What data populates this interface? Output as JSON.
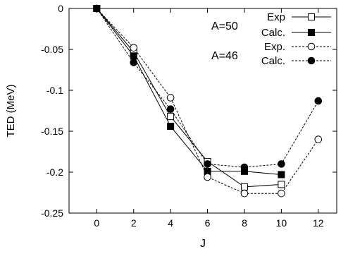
{
  "chart_data": {
    "type": "line",
    "xlabel": "J",
    "ylabel": "TED (MeV)",
    "xlim": [
      -1.5,
      13.0
    ],
    "ylim": [
      -0.25,
      0.0
    ],
    "x_ticks": [
      "0",
      "2",
      "4",
      "6",
      "8",
      "10",
      "12"
    ],
    "y_ticks": [
      "0",
      "-0.05",
      "-0.1",
      "-0.15",
      "-0.2",
      "-0.25"
    ],
    "x_tick_values": [
      0,
      2,
      4,
      6,
      8,
      10,
      12
    ],
    "y_tick_values": [
      0,
      -0.05,
      -0.1,
      -0.15,
      -0.2,
      -0.25
    ],
    "grid": false,
    "legend_position": "top-right",
    "groups": [
      {
        "label": "A=50",
        "series": [
          0,
          1
        ]
      },
      {
        "label": "A=46",
        "series": [
          2,
          3
        ]
      }
    ],
    "series": [
      {
        "name": "Exp",
        "x": [
          0,
          2,
          4,
          6,
          8,
          10
        ],
        "y": [
          0.0,
          -0.053,
          -0.132,
          -0.187,
          -0.218,
          -0.215
        ],
        "marker": "square-open",
        "line": "solid"
      },
      {
        "name": "Calc.",
        "x": [
          0,
          2,
          4,
          6,
          8,
          10
        ],
        "y": [
          0.0,
          -0.058,
          -0.144,
          -0.199,
          -0.199,
          -0.203
        ],
        "marker": "square-filled",
        "line": "solid"
      },
      {
        "name": "Exp.",
        "x": [
          0,
          2,
          4,
          6,
          8,
          10,
          12
        ],
        "y": [
          0.0,
          -0.048,
          -0.109,
          -0.206,
          -0.226,
          -0.226,
          -0.16
        ],
        "marker": "circle-open",
        "line": "dashed"
      },
      {
        "name": "Calc.",
        "x": [
          0,
          2,
          4,
          6,
          8,
          10,
          12
        ],
        "y": [
          0.0,
          -0.066,
          -0.123,
          -0.19,
          -0.194,
          -0.19,
          -0.113
        ],
        "marker": "circle-filled",
        "line": "dashed"
      }
    ]
  }
}
